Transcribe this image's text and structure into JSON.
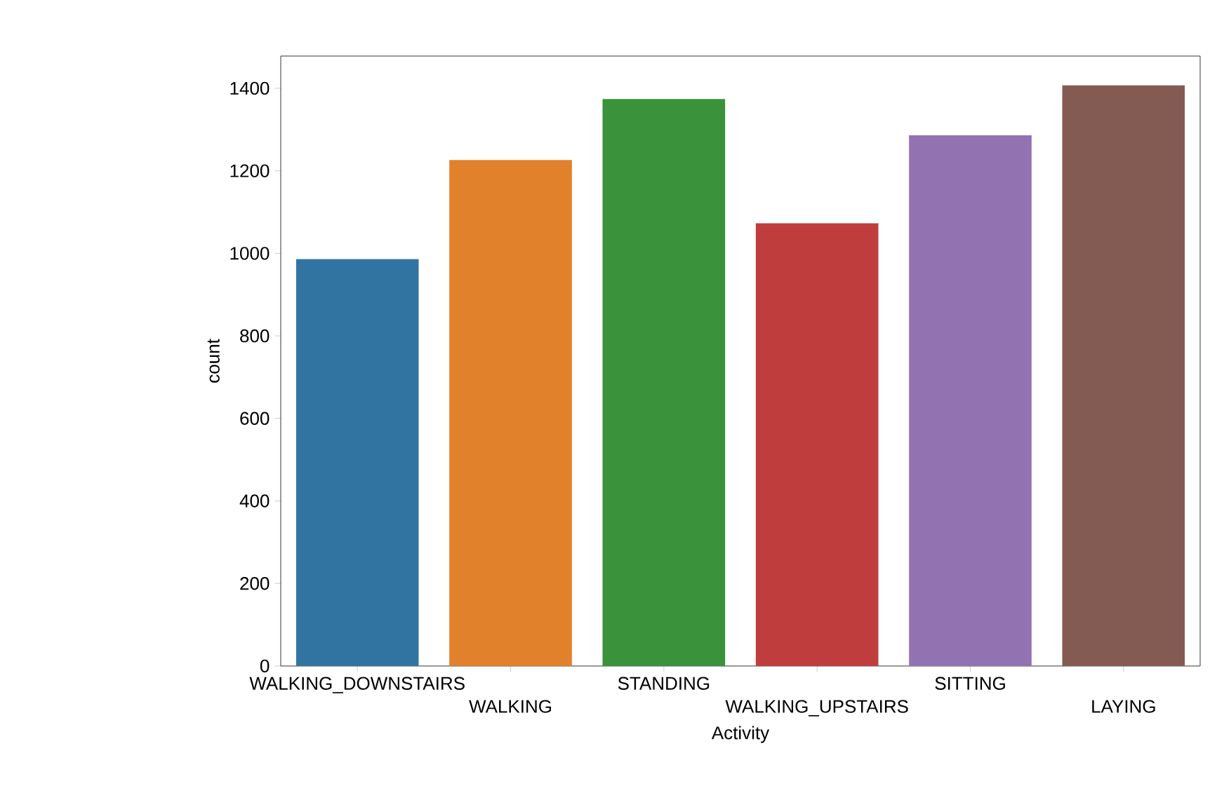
{
  "chart_data": {
    "type": "bar",
    "xlabel": "Activity",
    "ylabel": "count",
    "categories": [
      "WALKING_DOWNSTAIRS",
      "WALKING",
      "STANDING",
      "WALKING_UPSTAIRS",
      "SITTING",
      "LAYING"
    ],
    "values": [
      986,
      1226,
      1374,
      1073,
      1286,
      1407
    ],
    "colors": [
      "#3274a1",
      "#e1812c",
      "#3a923a",
      "#c03d3e",
      "#9372b2",
      "#845b53"
    ],
    "ylim": [
      0,
      1478
    ],
    "yticks": [
      0,
      200,
      400,
      600,
      800,
      1000,
      1200,
      1400
    ]
  }
}
